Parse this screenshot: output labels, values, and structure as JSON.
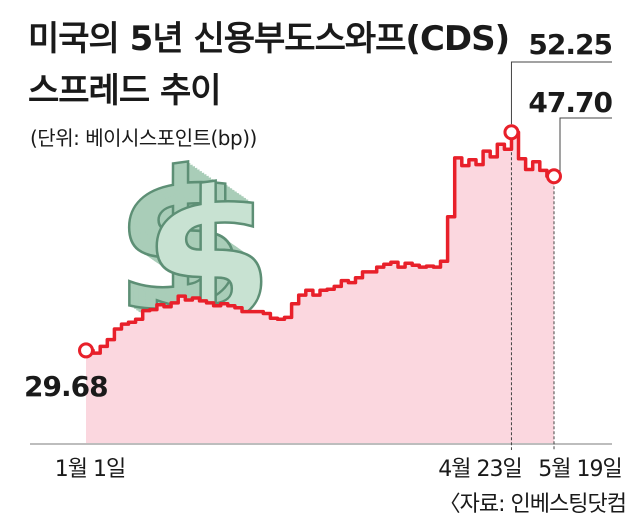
{
  "header": {
    "title_line1": "미국의 5년 신용부도스와프(CDS)",
    "title_line2": "스프레드 추이",
    "unit": "(단위: 베이시스포인트(bp))"
  },
  "source": "〈자료: 인베스팅닷컴",
  "colors": {
    "line": "#e8202a",
    "fill": "#fbd7df",
    "dollar": "#c8e2d2",
    "dollar_edge": "#5d8f75",
    "text": "#1a1a1a"
  },
  "icon": "dollar-sign-icon",
  "chart_data": {
    "type": "area",
    "unit": "bp",
    "ylim": [
      20,
      56
    ],
    "x_tick_labels": [
      "1월 1일",
      "4월 23일",
      "5월 19일"
    ],
    "annotations": [
      {
        "label": "29.68",
        "point": "start"
      },
      {
        "label": "52.25",
        "point": "peak"
      },
      {
        "label": "47.70",
        "point": "end"
      }
    ],
    "series": [
      {
        "values": [
          29.68,
          29.4,
          30.1,
          30.8,
          31.9,
          32.4,
          32.6,
          32.9,
          33.8,
          33.9,
          34.4,
          34.2,
          34.6,
          35.3,
          34.9,
          35.1,
          34.8,
          34.6,
          34.3,
          34.5,
          34.3,
          34.1,
          33.7,
          33.7,
          33.7,
          33.5,
          33.0,
          32.9,
          33.1,
          34.5,
          35.4,
          35.9,
          35.4,
          35.9,
          36.0,
          36.3,
          36.9,
          36.7,
          37.2,
          37.8,
          37.8,
          38.3,
          38.6,
          38.8,
          38.3,
          38.7,
          38.5,
          38.3,
          38.4,
          38.3,
          38.9,
          43.5,
          49.6,
          48.8,
          49.4,
          48.9,
          50.3,
          49.7,
          51.0,
          50.5,
          52.25,
          49.5,
          48.4,
          49.2,
          48.3,
          47.7,
          47.7
        ]
      }
    ]
  }
}
